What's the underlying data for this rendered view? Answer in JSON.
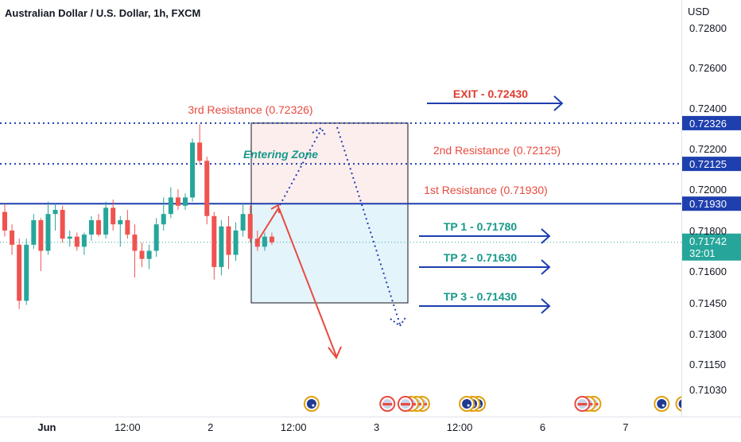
{
  "header": {
    "title": "Australian Dollar / U.S. Dollar, 1h, FXCM",
    "currency": "USD"
  },
  "colors": {
    "up": "#26a69a",
    "down": "#ef5350",
    "resistance_line": "#1e3fae",
    "resistance_text": "#e84a3f",
    "tp_text": "#16998a",
    "arrow": "#1e3fae",
    "zone_top": "#fdeeee",
    "zone_bottom": "#e4f4fb"
  },
  "chart_data": {
    "type": "candlestick",
    "price_ticks": [
      0.728,
      0.726,
      0.724,
      0.722,
      0.72,
      0.718,
      0.716,
      0.7145,
      0.713,
      0.7115,
      0.7103
    ],
    "price_tick_labels": [
      "0.72800",
      "0.72600",
      "0.72400",
      "0.72200",
      "0.72000",
      "0.71800",
      "0.71600",
      "0.71450",
      "0.71300",
      "0.71150",
      "0.71030"
    ],
    "time_labels": [
      {
        "label": "Jun",
        "bar": 5.5
      },
      {
        "label": "12:00",
        "bar": 17
      },
      {
        "label": "2",
        "bar": 28.5
      },
      {
        "label": "12:00",
        "bar": 40
      },
      {
        "label": "3",
        "bar": 51.5
      },
      {
        "label": "12:00",
        "bar": 63
      },
      {
        "label": "6",
        "bar": 74.5
      },
      {
        "label": "7",
        "bar": 86
      }
    ],
    "candles": [
      {
        "o": 0.7189,
        "h": 0.7193,
        "l": 0.7177,
        "c": 0.718
      },
      {
        "o": 0.718,
        "h": 0.7183,
        "l": 0.7168,
        "c": 0.7173
      },
      {
        "o": 0.7173,
        "h": 0.7176,
        "l": 0.7142,
        "c": 0.7146
      },
      {
        "o": 0.7146,
        "h": 0.7176,
        "l": 0.7144,
        "c": 0.7173
      },
      {
        "o": 0.7173,
        "h": 0.7188,
        "l": 0.7171,
        "c": 0.7185
      },
      {
        "o": 0.7185,
        "h": 0.7186,
        "l": 0.716,
        "c": 0.717
      },
      {
        "o": 0.717,
        "h": 0.7194,
        "l": 0.7168,
        "c": 0.7188
      },
      {
        "o": 0.7188,
        "h": 0.7193,
        "l": 0.718,
        "c": 0.719
      },
      {
        "o": 0.719,
        "h": 0.7192,
        "l": 0.7174,
        "c": 0.7176
      },
      {
        "o": 0.7176,
        "h": 0.718,
        "l": 0.7172,
        "c": 0.7177
      },
      {
        "o": 0.7177,
        "h": 0.7179,
        "l": 0.717,
        "c": 0.7172
      },
      {
        "o": 0.7172,
        "h": 0.7179,
        "l": 0.7168,
        "c": 0.7178
      },
      {
        "o": 0.7178,
        "h": 0.7187,
        "l": 0.7175,
        "c": 0.7185
      },
      {
        "o": 0.7185,
        "h": 0.7188,
        "l": 0.7177,
        "c": 0.7178
      },
      {
        "o": 0.7178,
        "h": 0.7194,
        "l": 0.7176,
        "c": 0.7191
      },
      {
        "o": 0.7191,
        "h": 0.7195,
        "l": 0.718,
        "c": 0.7183
      },
      {
        "o": 0.7183,
        "h": 0.7187,
        "l": 0.7172,
        "c": 0.7185
      },
      {
        "o": 0.7185,
        "h": 0.719,
        "l": 0.7176,
        "c": 0.7178
      },
      {
        "o": 0.7178,
        "h": 0.7183,
        "l": 0.7157,
        "c": 0.717
      },
      {
        "o": 0.717,
        "h": 0.7174,
        "l": 0.7162,
        "c": 0.7166
      },
      {
        "o": 0.7166,
        "h": 0.7173,
        "l": 0.7161,
        "c": 0.717
      },
      {
        "o": 0.717,
        "h": 0.7186,
        "l": 0.7167,
        "c": 0.7183
      },
      {
        "o": 0.7183,
        "h": 0.7196,
        "l": 0.718,
        "c": 0.7188
      },
      {
        "o": 0.7188,
        "h": 0.7201,
        "l": 0.7186,
        "c": 0.7196
      },
      {
        "o": 0.7196,
        "h": 0.72,
        "l": 0.719,
        "c": 0.7192
      },
      {
        "o": 0.7192,
        "h": 0.7198,
        "l": 0.719,
        "c": 0.7196
      },
      {
        "o": 0.7196,
        "h": 0.7225,
        "l": 0.7194,
        "c": 0.7223
      },
      {
        "o": 0.7223,
        "h": 0.7232,
        "l": 0.7212,
        "c": 0.7214
      },
      {
        "o": 0.7214,
        "h": 0.7216,
        "l": 0.7183,
        "c": 0.7187
      },
      {
        "o": 0.7187,
        "h": 0.7189,
        "l": 0.7156,
        "c": 0.7162
      },
      {
        "o": 0.7162,
        "h": 0.7185,
        "l": 0.7158,
        "c": 0.7182
      },
      {
        "o": 0.7182,
        "h": 0.7187,
        "l": 0.7161,
        "c": 0.7168
      },
      {
        "o": 0.7168,
        "h": 0.7184,
        "l": 0.7165,
        "c": 0.718
      },
      {
        "o": 0.718,
        "h": 0.7193,
        "l": 0.7177,
        "c": 0.7188
      },
      {
        "o": 0.7188,
        "h": 0.7192,
        "l": 0.7174,
        "c": 0.7176
      },
      {
        "o": 0.7176,
        "h": 0.718,
        "l": 0.717,
        "c": 0.7172
      },
      {
        "o": 0.7172,
        "h": 0.7179,
        "l": 0.717,
        "c": 0.7177
      },
      {
        "o": 0.7177,
        "h": 0.7179,
        "l": 0.7173,
        "c": 0.71742
      }
    ],
    "price_lines": [
      {
        "price": 0.72326,
        "style": "dotted",
        "label": "3rd Resistance (0.72326)",
        "axis_label": "0.72326"
      },
      {
        "price": 0.72125,
        "style": "dotted",
        "label": "2nd Resistance (0.72125)",
        "axis_label": "0.72125"
      },
      {
        "price": 0.7193,
        "style": "solid",
        "label": "1st Resistance (0.71930)",
        "axis_label": "0.71930"
      }
    ],
    "current_price": {
      "price": 0.71742,
      "label": "0.71742",
      "countdown": "32:01"
    },
    "entering_zone": {
      "label": "Entering Zone",
      "top": 0.72326,
      "mid": 0.7193,
      "bottom": 0.7145
    },
    "targets": [
      {
        "label": "EXIT - 0.72430",
        "price": 0.7243,
        "kind": "exit"
      },
      {
        "label": "TP 1 - 0.71780",
        "price": 0.7178,
        "kind": "tp"
      },
      {
        "label": "TP 2 - 0.71630",
        "price": 0.7163,
        "kind": "tp"
      },
      {
        "label": "TP 3 - 0.71430",
        "price": 0.7143,
        "kind": "tp"
      }
    ],
    "event_flags": [
      {
        "country": "au",
        "count": 1,
        "bar": 42.5
      },
      {
        "country": "us",
        "count": 1,
        "bar": 53
      },
      {
        "country": "us",
        "count": 4,
        "bar": 55.5
      },
      {
        "country": "au",
        "count": 3,
        "bar": 64
      },
      {
        "country": "us",
        "count": 3,
        "bar": 80
      },
      {
        "country": "au",
        "count": 1,
        "bar": 91
      },
      {
        "country": "au",
        "count": 1,
        "bar": 94
      }
    ]
  }
}
